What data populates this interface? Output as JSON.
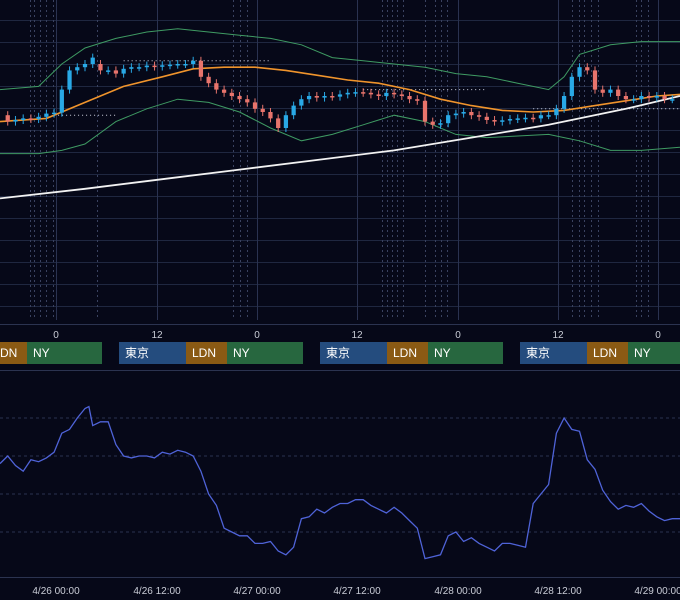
{
  "colors": {
    "background": "#060818",
    "grid": "#1f2740",
    "candle_up": "#29a9e6",
    "candle_down": "#e8746c",
    "ma": "#f0942c",
    "bollinger": "#3f9b63",
    "long_ma": "#f2f2f2",
    "indicator": "#4f63d8",
    "session_tokyo": "#244c7e",
    "session_london": "#8a5a14",
    "session_ny": "#27673f"
  },
  "hour_axis": {
    "labels": [
      "0",
      "12",
      "0",
      "12",
      "0",
      "12",
      "0"
    ]
  },
  "sessions": [
    {
      "tokyo": "",
      "london": "DN",
      "ny": "NY"
    },
    {
      "tokyo": "東京",
      "london": "LDN",
      "ny": "NY"
    },
    {
      "tokyo": "東京",
      "london": "LDN",
      "ny": "NY"
    },
    {
      "tokyo": "東京",
      "london": "LDN",
      "ny": "NY"
    }
  ],
  "date_axis": {
    "labels": [
      "4/26 00:00",
      "4/26 12:00",
      "4/27 00:00",
      "4/27 12:00",
      "4/28 00:00",
      "4/28 12:00",
      "4/29 00:00"
    ]
  },
  "chart_data": [
    {
      "type": "candlestick",
      "title": "",
      "x_unit": "hours since 4/26 00:00",
      "x_range": [
        -11,
        77
      ],
      "candles": [
        {
          "x": -10,
          "o": 0.64,
          "c": 0.62
        },
        {
          "x": -9,
          "o": 0.62,
          "c": 0.625
        },
        {
          "x": -8,
          "o": 0.625,
          "c": 0.63
        },
        {
          "x": -7,
          "o": 0.63,
          "c": 0.628
        },
        {
          "x": -6,
          "o": 0.628,
          "c": 0.635
        },
        {
          "x": -5,
          "o": 0.635,
          "c": 0.645
        },
        {
          "x": -4,
          "o": 0.645,
          "c": 0.648
        },
        {
          "x": -3,
          "o": 0.648,
          "c": 0.72
        },
        {
          "x": -2,
          "o": 0.72,
          "c": 0.78
        },
        {
          "x": -1,
          "o": 0.78,
          "c": 0.79
        },
        {
          "x": 0,
          "o": 0.79,
          "c": 0.8
        },
        {
          "x": 1,
          "o": 0.8,
          "c": 0.82
        },
        {
          "x": 2,
          "o": 0.8,
          "c": 0.78
        },
        {
          "x": 3,
          "o": 0.78,
          "c": 0.78
        },
        {
          "x": 4,
          "o": 0.78,
          "c": 0.77
        },
        {
          "x": 5,
          "o": 0.77,
          "c": 0.785
        },
        {
          "x": 6,
          "o": 0.785,
          "c": 0.79
        },
        {
          "x": 7,
          "o": 0.79,
          "c": 0.79
        },
        {
          "x": 8,
          "o": 0.79,
          "c": 0.795
        },
        {
          "x": 9,
          "o": 0.795,
          "c": 0.792
        },
        {
          "x": 10,
          "o": 0.792,
          "c": 0.796
        },
        {
          "x": 11,
          "o": 0.796,
          "c": 0.798
        },
        {
          "x": 12,
          "o": 0.798,
          "c": 0.8
        },
        {
          "x": 13,
          "o": 0.8,
          "c": 0.8
        },
        {
          "x": 14,
          "o": 0.8,
          "c": 0.81
        },
        {
          "x": 15,
          "o": 0.81,
          "c": 0.76
        },
        {
          "x": 16,
          "o": 0.76,
          "c": 0.74
        },
        {
          "x": 17,
          "o": 0.74,
          "c": 0.72
        },
        {
          "x": 18,
          "o": 0.72,
          "c": 0.71
        },
        {
          "x": 19,
          "o": 0.71,
          "c": 0.7
        },
        {
          "x": 20,
          "o": 0.7,
          "c": 0.69
        },
        {
          "x": 21,
          "o": 0.69,
          "c": 0.68
        },
        {
          "x": 22,
          "o": 0.68,
          "c": 0.66
        },
        {
          "x": 23,
          "o": 0.66,
          "c": 0.65
        },
        {
          "x": 24,
          "o": 0.65,
          "c": 0.63
        },
        {
          "x": 25,
          "o": 0.63,
          "c": 0.6
        },
        {
          "x": 26,
          "o": 0.6,
          "c": 0.64
        },
        {
          "x": 27,
          "o": 0.64,
          "c": 0.67
        },
        {
          "x": 28,
          "o": 0.67,
          "c": 0.69
        },
        {
          "x": 29,
          "o": 0.69,
          "c": 0.7
        },
        {
          "x": 30,
          "o": 0.7,
          "c": 0.695
        },
        {
          "x": 31,
          "o": 0.695,
          "c": 0.7
        },
        {
          "x": 32,
          "o": 0.7,
          "c": 0.698
        },
        {
          "x": 33,
          "o": 0.698,
          "c": 0.705
        },
        {
          "x": 34,
          "o": 0.705,
          "c": 0.71
        },
        {
          "x": 35,
          "o": 0.71,
          "c": 0.712
        },
        {
          "x": 36,
          "o": 0.712,
          "c": 0.71
        },
        {
          "x": 37,
          "o": 0.71,
          "c": 0.705
        },
        {
          "x": 38,
          "o": 0.705,
          "c": 0.7
        },
        {
          "x": 39,
          "o": 0.7,
          "c": 0.71
        },
        {
          "x": 40,
          "o": 0.71,
          "c": 0.705
        },
        {
          "x": 41,
          "o": 0.705,
          "c": 0.7
        },
        {
          "x": 42,
          "o": 0.7,
          "c": 0.69
        },
        {
          "x": 43,
          "o": 0.69,
          "c": 0.685
        },
        {
          "x": 44,
          "o": 0.685,
          "c": 0.62
        },
        {
          "x": 45,
          "o": 0.62,
          "c": 0.61
        },
        {
          "x": 46,
          "o": 0.61,
          "c": 0.615
        },
        {
          "x": 47,
          "o": 0.615,
          "c": 0.64
        },
        {
          "x": 48,
          "o": 0.64,
          "c": 0.645
        },
        {
          "x": 49,
          "o": 0.645,
          "c": 0.65
        },
        {
          "x": 50,
          "o": 0.65,
          "c": 0.64
        },
        {
          "x": 51,
          "o": 0.64,
          "c": 0.635
        },
        {
          "x": 52,
          "o": 0.635,
          "c": 0.625
        },
        {
          "x": 53,
          "o": 0.625,
          "c": 0.62
        },
        {
          "x": 54,
          "o": 0.62,
          "c": 0.624
        },
        {
          "x": 55,
          "o": 0.624,
          "c": 0.628
        },
        {
          "x": 56,
          "o": 0.628,
          "c": 0.63
        },
        {
          "x": 57,
          "o": 0.63,
          "c": 0.632
        },
        {
          "x": 58,
          "o": 0.632,
          "c": 0.63
        },
        {
          "x": 59,
          "o": 0.63,
          "c": 0.64
        },
        {
          "x": 60,
          "o": 0.64,
          "c": 0.64
        },
        {
          "x": 61,
          "o": 0.64,
          "c": 0.66
        },
        {
          "x": 62,
          "o": 0.66,
          "c": 0.7
        },
        {
          "x": 63,
          "o": 0.7,
          "c": 0.76
        },
        {
          "x": 64,
          "o": 0.76,
          "c": 0.79
        },
        {
          "x": 65,
          "o": 0.79,
          "c": 0.78
        },
        {
          "x": 66,
          "o": 0.78,
          "c": 0.72
        },
        {
          "x": 67,
          "o": 0.72,
          "c": 0.71
        },
        {
          "x": 68,
          "o": 0.71,
          "c": 0.72
        },
        {
          "x": 69,
          "o": 0.72,
          "c": 0.7
        },
        {
          "x": 70,
          "o": 0.7,
          "c": 0.69
        },
        {
          "x": 71,
          "o": 0.69,
          "c": 0.69
        },
        {
          "x": 72,
          "o": 0.69,
          "c": 0.7
        },
        {
          "x": 73,
          "o": 0.7,
          "c": 0.695
        },
        {
          "x": 74,
          "o": 0.695,
          "c": 0.7
        },
        {
          "x": 75,
          "o": 0.7,
          "c": 0.69
        },
        {
          "x": 76,
          "o": 0.69,
          "c": 0.69
        }
      ],
      "overlays": [
        {
          "role": "moving-average",
          "color": "#f0942c",
          "points": [
            [
              -11,
              0.62
            ],
            [
              -5,
              0.63
            ],
            [
              0,
              0.68
            ],
            [
              5,
              0.73
            ],
            [
              10,
              0.76
            ],
            [
              14,
              0.785
            ],
            [
              18,
              0.79
            ],
            [
              22,
              0.79
            ],
            [
              26,
              0.78
            ],
            [
              30,
              0.765
            ],
            [
              34,
              0.75
            ],
            [
              38,
              0.74
            ],
            [
              42,
              0.72
            ],
            [
              46,
              0.69
            ],
            [
              50,
              0.67
            ],
            [
              54,
              0.655
            ],
            [
              58,
              0.65
            ],
            [
              62,
              0.655
            ],
            [
              66,
              0.67
            ],
            [
              70,
              0.685
            ],
            [
              74,
              0.7
            ],
            [
              77,
              0.705
            ]
          ]
        },
        {
          "role": "bollinger-upper",
          "color": "#3f9b63",
          "points": [
            [
              -11,
              0.72
            ],
            [
              -6,
              0.73
            ],
            [
              -3,
              0.8
            ],
            [
              0,
              0.85
            ],
            [
              4,
              0.88
            ],
            [
              8,
              0.9
            ],
            [
              12,
              0.91
            ],
            [
              16,
              0.9
            ],
            [
              20,
              0.89
            ],
            [
              24,
              0.88
            ],
            [
              28,
              0.86
            ],
            [
              32,
              0.82
            ],
            [
              36,
              0.81
            ],
            [
              40,
              0.8
            ],
            [
              44,
              0.79
            ],
            [
              48,
              0.77
            ],
            [
              52,
              0.76
            ],
            [
              56,
              0.74
            ],
            [
              60,
              0.72
            ],
            [
              62,
              0.76
            ],
            [
              64,
              0.83
            ],
            [
              68,
              0.86
            ],
            [
              72,
              0.87
            ],
            [
              77,
              0.87
            ]
          ]
        },
        {
          "role": "bollinger-lower",
          "color": "#3f9b63",
          "points": [
            [
              -11,
              0.52
            ],
            [
              -6,
              0.52
            ],
            [
              -3,
              0.53
            ],
            [
              0,
              0.55
            ],
            [
              4,
              0.62
            ],
            [
              8,
              0.66
            ],
            [
              12,
              0.69
            ],
            [
              16,
              0.68
            ],
            [
              20,
              0.65
            ],
            [
              24,
              0.6
            ],
            [
              28,
              0.56
            ],
            [
              32,
              0.58
            ],
            [
              36,
              0.61
            ],
            [
              40,
              0.64
            ],
            [
              44,
              0.62
            ],
            [
              48,
              0.58
            ],
            [
              52,
              0.57
            ],
            [
              56,
              0.575
            ],
            [
              60,
              0.58
            ],
            [
              62,
              0.57
            ],
            [
              64,
              0.56
            ],
            [
              68,
              0.53
            ],
            [
              72,
              0.53
            ],
            [
              77,
              0.54
            ]
          ]
        },
        {
          "role": "long-moving-average",
          "color": "#f2f2f2",
          "points": [
            [
              -11,
              0.38
            ],
            [
              0,
              0.41
            ],
            [
              10,
              0.44
            ],
            [
              20,
              0.47
            ],
            [
              30,
              0.5
            ],
            [
              40,
              0.53
            ],
            [
              50,
              0.57
            ],
            [
              60,
              0.61
            ],
            [
              70,
              0.66
            ],
            [
              77,
              0.7
            ]
          ]
        }
      ],
      "levels": [
        {
          "value": 0.81,
          "from": 5,
          "to": 24
        },
        {
          "value": 0.72,
          "from": 36,
          "to": 52
        },
        {
          "value": 0.64,
          "from": -4,
          "to": 4
        },
        {
          "value": 0.66,
          "from": 58,
          "to": 77
        }
      ],
      "grid": true,
      "y_range": [
        0,
        1
      ]
    },
    {
      "type": "line",
      "title": "",
      "name": "",
      "x_unit": "hours since 4/26 00:00",
      "x_range": [
        -11,
        77
      ],
      "y_range": [
        0,
        1
      ],
      "points": [
        [
          -11,
          0.56
        ],
        [
          -10,
          0.6
        ],
        [
          -9,
          0.55
        ],
        [
          -8,
          0.52
        ],
        [
          -7,
          0.58
        ],
        [
          -6,
          0.57
        ],
        [
          -5,
          0.59
        ],
        [
          -4,
          0.62
        ],
        [
          -3,
          0.72
        ],
        [
          -2,
          0.74
        ],
        [
          -1,
          0.8
        ],
        [
          0,
          0.85
        ],
        [
          0.5,
          0.86
        ],
        [
          1,
          0.76
        ],
        [
          2,
          0.78
        ],
        [
          3,
          0.78
        ],
        [
          4,
          0.66
        ],
        [
          5,
          0.6
        ],
        [
          6,
          0.59
        ],
        [
          7,
          0.6
        ],
        [
          8,
          0.6
        ],
        [
          9,
          0.59
        ],
        [
          10,
          0.62
        ],
        [
          11,
          0.61
        ],
        [
          12,
          0.63
        ],
        [
          13,
          0.62
        ],
        [
          14,
          0.6
        ],
        [
          15,
          0.52
        ],
        [
          16,
          0.4
        ],
        [
          17,
          0.34
        ],
        [
          18,
          0.22
        ],
        [
          19,
          0.2
        ],
        [
          20,
          0.18
        ],
        [
          21,
          0.18
        ],
        [
          22,
          0.14
        ],
        [
          23,
          0.14
        ],
        [
          24,
          0.15
        ],
        [
          25,
          0.1
        ],
        [
          26,
          0.08
        ],
        [
          27,
          0.12
        ],
        [
          28,
          0.27
        ],
        [
          29,
          0.28
        ],
        [
          30,
          0.32
        ],
        [
          31,
          0.3
        ],
        [
          32,
          0.33
        ],
        [
          33,
          0.35
        ],
        [
          34,
          0.35
        ],
        [
          35,
          0.37
        ],
        [
          36,
          0.37
        ],
        [
          37,
          0.34
        ],
        [
          38,
          0.32
        ],
        [
          39,
          0.3
        ],
        [
          40,
          0.33
        ],
        [
          41,
          0.3
        ],
        [
          42,
          0.26
        ],
        [
          43,
          0.22
        ],
        [
          44,
          0.06
        ],
        [
          45,
          0.07
        ],
        [
          46,
          0.08
        ],
        [
          47,
          0.18
        ],
        [
          48,
          0.2
        ],
        [
          49,
          0.15
        ],
        [
          50,
          0.17
        ],
        [
          51,
          0.14
        ],
        [
          52,
          0.12
        ],
        [
          53,
          0.1
        ],
        [
          54,
          0.14
        ],
        [
          55,
          0.14
        ],
        [
          56,
          0.13
        ],
        [
          57,
          0.12
        ],
        [
          58,
          0.35
        ],
        [
          59,
          0.4
        ],
        [
          60,
          0.45
        ],
        [
          61,
          0.72
        ],
        [
          62,
          0.8
        ],
        [
          63,
          0.74
        ],
        [
          64,
          0.73
        ],
        [
          65,
          0.58
        ],
        [
          66,
          0.53
        ],
        [
          67,
          0.42
        ],
        [
          68,
          0.36
        ],
        [
          69,
          0.32
        ],
        [
          70,
          0.34
        ],
        [
          71,
          0.33
        ],
        [
          72,
          0.35
        ],
        [
          73,
          0.31
        ],
        [
          74,
          0.28
        ],
        [
          75,
          0.26
        ],
        [
          76,
          0.27
        ],
        [
          77,
          0.27
        ]
      ],
      "grid": true
    }
  ]
}
